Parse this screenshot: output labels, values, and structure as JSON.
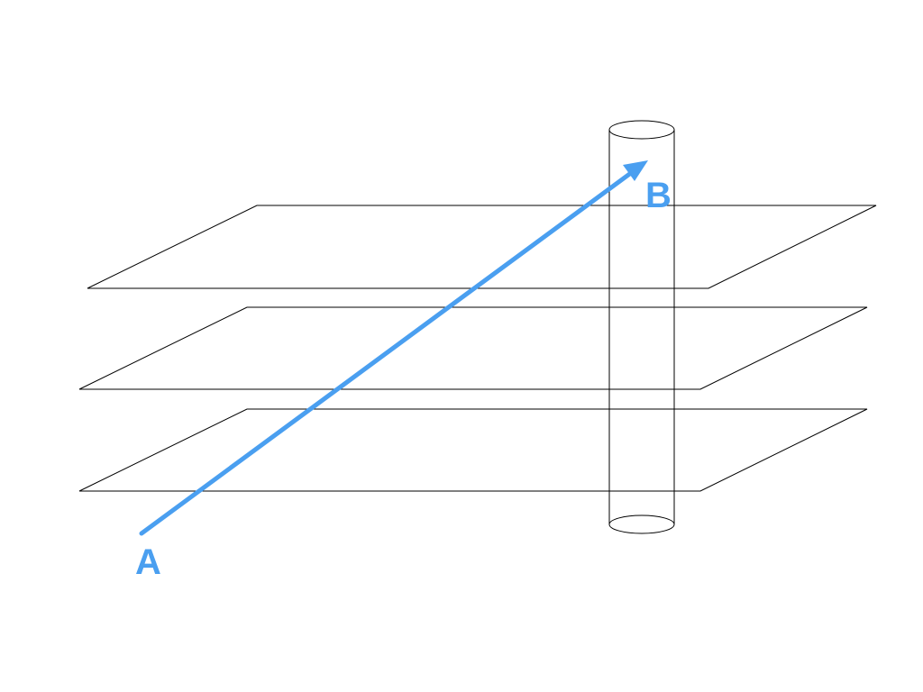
{
  "diagram": {
    "accent_color": "#4a9ff0",
    "line_color": "#000000",
    "background_color": "#ffffff",
    "planes": [
      {
        "name": "top-plane"
      },
      {
        "name": "middle-plane"
      },
      {
        "name": "bottom-plane"
      }
    ],
    "cylinder": {
      "name": "vertical-cylinder"
    },
    "arrow": {
      "from": "A",
      "to": "B"
    },
    "labels": {
      "start": "A",
      "end": "B"
    }
  }
}
